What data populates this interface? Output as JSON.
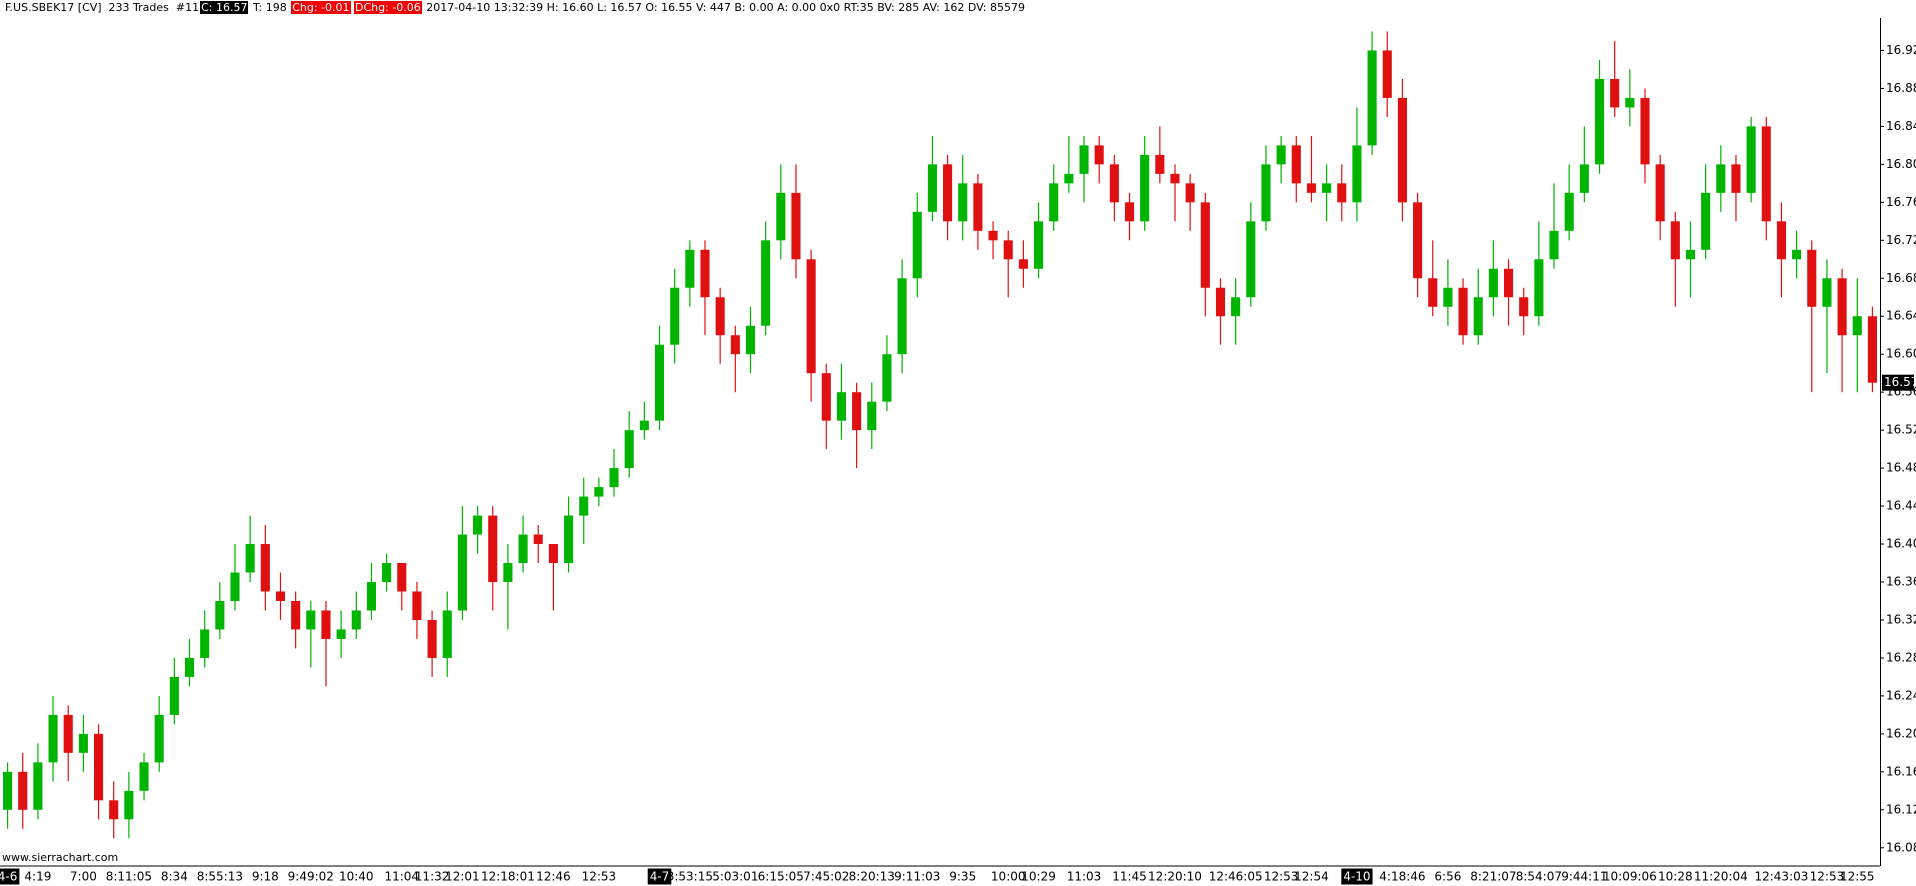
{
  "header": {
    "symbol": "F.US.SBEK17 [CV]  233 Trades  #11",
    "close": "C: 16.57",
    "ticks": "T: 198",
    "chg": "Chg: -0.01",
    "dchg": "DChg: -0.06",
    "info": "2017-04-10 13:32:39 H: 16.60 L: 16.57 O: 16.55 V: 447 B: 0.00 A: 0.00 0x0 RT:35 BV: 285 AV: 162 DV: 85579"
  },
  "watermark": "www.sierrachart.com",
  "chart_data": {
    "type": "candlestick",
    "up_color": "#00b400",
    "down_color": "#e01010",
    "ylim": [
      16.065,
      16.95
    ],
    "yticks": [
      16.08,
      16.12,
      16.16,
      {
        "value": 16.2,
        "label": "16.20"
      },
      16.24,
      16.28,
      16.32,
      16.36,
      {
        "value": 16.4,
        "label": "16.40"
      },
      16.44,
      16.48,
      16.52,
      16.56,
      {
        "value": 16.6,
        "label": "16.60"
      },
      16.64,
      16.68,
      16.72,
      16.76,
      {
        "value": 16.8,
        "label": "16.80"
      },
      16.84,
      16.88,
      16.92
    ],
    "last_price": 16.57,
    "categories": [
      "4-6",
      null,
      "4:19",
      null,
      null,
      "7:00",
      null,
      null,
      "8:11:05",
      null,
      null,
      "8:34",
      null,
      null,
      "8:55:13",
      null,
      null,
      "9:18",
      null,
      null,
      "9:49:02",
      null,
      null,
      "10:40",
      null,
      null,
      "11:04",
      null,
      "11:32",
      null,
      "12:01",
      null,
      null,
      "12:18:01",
      null,
      null,
      "12:46",
      null,
      null,
      "12:53",
      null,
      null,
      null,
      "4-7",
      null,
      "3:53:15",
      null,
      null,
      "5:03:01",
      null,
      null,
      "6:15:05",
      null,
      null,
      "7:45:02",
      null,
      null,
      "8:20:13",
      null,
      null,
      "9:11:03",
      null,
      null,
      "9:35",
      null,
      null,
      "10:00",
      null,
      "10:29",
      null,
      null,
      "11:03",
      null,
      null,
      "11:45",
      null,
      null,
      "12:20:10",
      null,
      null,
      null,
      "12:46:05",
      null,
      null,
      "12:53",
      null,
      "12:54",
      null,
      null,
      "4-10",
      null,
      null,
      "4:18:46",
      null,
      null,
      "6:56",
      null,
      null,
      "8:21:07",
      null,
      null,
      "8:54:07",
      null,
      null,
      "9:44:11",
      null,
      null,
      "10:09:06",
      null,
      null,
      "10:28",
      null,
      null,
      "11:20:04",
      null,
      null,
      null,
      "12:43:03",
      null,
      null,
      "12:53",
      null,
      "12:55",
      null
    ],
    "ohlc": [
      [
        16.12,
        16.17,
        16.1,
        16.16
      ],
      [
        16.16,
        16.18,
        16.1,
        16.12
      ],
      [
        16.12,
        16.19,
        16.11,
        16.17
      ],
      [
        16.17,
        16.24,
        16.15,
        16.22
      ],
      [
        16.22,
        16.23,
        16.15,
        16.18
      ],
      [
        16.18,
        16.22,
        16.16,
        16.2
      ],
      [
        16.2,
        16.21,
        16.11,
        16.13
      ],
      [
        16.13,
        16.15,
        16.09,
        16.11
      ],
      [
        16.11,
        16.16,
        16.09,
        16.14
      ],
      [
        16.14,
        16.18,
        16.13,
        16.17
      ],
      [
        16.17,
        16.24,
        16.16,
        16.22
      ],
      [
        16.22,
        16.28,
        16.21,
        16.26
      ],
      [
        16.26,
        16.3,
        16.25,
        16.28
      ],
      [
        16.28,
        16.33,
        16.27,
        16.31
      ],
      [
        16.31,
        16.36,
        16.3,
        16.34
      ],
      [
        16.34,
        16.4,
        16.33,
        16.37
      ],
      [
        16.37,
        16.43,
        16.36,
        16.4
      ],
      [
        16.4,
        16.42,
        16.33,
        16.35
      ],
      [
        16.35,
        16.37,
        16.32,
        16.34
      ],
      [
        16.34,
        16.35,
        16.29,
        16.31
      ],
      [
        16.31,
        16.34,
        16.27,
        16.33
      ],
      [
        16.33,
        16.34,
        16.25,
        16.3
      ],
      [
        16.3,
        16.33,
        16.28,
        16.31
      ],
      [
        16.31,
        16.35,
        16.3,
        16.33
      ],
      [
        16.33,
        16.38,
        16.32,
        16.36
      ],
      [
        16.36,
        16.39,
        16.35,
        16.38
      ],
      [
        16.38,
        16.38,
        16.33,
        16.35
      ],
      [
        16.35,
        16.36,
        16.3,
        16.32
      ],
      [
        16.32,
        16.33,
        16.26,
        16.28
      ],
      [
        16.28,
        16.35,
        16.26,
        16.33
      ],
      [
        16.33,
        16.44,
        16.32,
        16.41
      ],
      [
        16.41,
        16.44,
        16.39,
        16.43
      ],
      [
        16.43,
        16.44,
        16.33,
        16.36
      ],
      [
        16.36,
        16.4,
        16.31,
        16.38
      ],
      [
        16.38,
        16.43,
        16.37,
        16.41
      ],
      [
        16.41,
        16.42,
        16.38,
        16.4
      ],
      [
        16.4,
        16.4,
        16.33,
        16.38
      ],
      [
        16.38,
        16.45,
        16.37,
        16.43
      ],
      [
        16.43,
        16.47,
        16.4,
        16.45
      ],
      [
        16.45,
        16.47,
        16.44,
        16.46
      ],
      [
        16.46,
        16.5,
        16.45,
        16.48
      ],
      [
        16.48,
        16.54,
        16.47,
        16.52
      ],
      [
        16.52,
        16.55,
        16.51,
        16.53
      ],
      [
        16.53,
        16.63,
        16.52,
        16.61
      ],
      [
        16.61,
        16.69,
        16.59,
        16.67
      ],
      [
        16.67,
        16.72,
        16.65,
        16.71
      ],
      [
        16.71,
        16.72,
        16.62,
        16.66
      ],
      [
        16.66,
        16.67,
        16.59,
        16.62
      ],
      [
        16.62,
        16.63,
        16.56,
        16.6
      ],
      [
        16.6,
        16.65,
        16.58,
        16.63
      ],
      [
        16.63,
        16.74,
        16.62,
        16.72
      ],
      [
        16.72,
        16.8,
        16.7,
        16.77
      ],
      [
        16.77,
        16.8,
        16.68,
        16.7
      ],
      [
        16.7,
        16.71,
        16.55,
        16.58
      ],
      [
        16.58,
        16.59,
        16.5,
        16.53
      ],
      [
        16.53,
        16.59,
        16.51,
        16.56
      ],
      [
        16.56,
        16.57,
        16.48,
        16.52
      ],
      [
        16.52,
        16.57,
        16.5,
        16.55
      ],
      [
        16.55,
        16.62,
        16.54,
        16.6
      ],
      [
        16.6,
        16.7,
        16.58,
        16.68
      ],
      [
        16.68,
        16.77,
        16.66,
        16.75
      ],
      [
        16.75,
        16.83,
        16.74,
        16.8
      ],
      [
        16.8,
        16.81,
        16.72,
        16.74
      ],
      [
        16.74,
        16.81,
        16.72,
        16.78
      ],
      [
        16.78,
        16.79,
        16.71,
        16.73
      ],
      [
        16.73,
        16.74,
        16.7,
        16.72
      ],
      [
        16.72,
        16.73,
        16.66,
        16.7
      ],
      [
        16.7,
        16.72,
        16.67,
        16.69
      ],
      [
        16.69,
        16.76,
        16.68,
        16.74
      ],
      [
        16.74,
        16.8,
        16.73,
        16.78
      ],
      [
        16.78,
        16.83,
        16.77,
        16.79
      ],
      [
        16.79,
        16.83,
        16.76,
        16.82
      ],
      [
        16.82,
        16.83,
        16.78,
        16.8
      ],
      [
        16.8,
        16.81,
        16.74,
        16.76
      ],
      [
        16.76,
        16.77,
        16.72,
        16.74
      ],
      [
        16.74,
        16.83,
        16.73,
        16.81
      ],
      [
        16.81,
        16.84,
        16.78,
        16.79
      ],
      [
        16.79,
        16.8,
        16.74,
        16.78
      ],
      [
        16.78,
        16.79,
        16.73,
        16.76
      ],
      [
        16.76,
        16.77,
        16.64,
        16.67
      ],
      [
        16.67,
        16.68,
        16.61,
        16.64
      ],
      [
        16.64,
        16.68,
        16.61,
        16.66
      ],
      [
        16.66,
        16.76,
        16.65,
        16.74
      ],
      [
        16.74,
        16.82,
        16.73,
        16.8
      ],
      [
        16.8,
        16.83,
        16.78,
        16.82
      ],
      [
        16.82,
        16.83,
        16.76,
        16.78
      ],
      [
        16.78,
        16.83,
        16.76,
        16.77
      ],
      [
        16.77,
        16.8,
        16.74,
        16.78
      ],
      [
        16.78,
        16.8,
        16.74,
        16.76
      ],
      [
        16.76,
        16.86,
        16.74,
        16.82
      ],
      [
        16.82,
        16.94,
        16.81,
        16.92
      ],
      [
        16.92,
        16.94,
        16.85,
        16.87
      ],
      [
        16.87,
        16.89,
        16.74,
        16.76
      ],
      [
        16.76,
        16.77,
        16.66,
        16.68
      ],
      [
        16.68,
        16.72,
        16.64,
        16.65
      ],
      [
        16.65,
        16.7,
        16.63,
        16.67
      ],
      [
        16.67,
        16.68,
        16.61,
        16.62
      ],
      [
        16.62,
        16.69,
        16.61,
        16.66
      ],
      [
        16.66,
        16.72,
        16.64,
        16.69
      ],
      [
        16.69,
        16.7,
        16.63,
        16.66
      ],
      [
        16.66,
        16.67,
        16.62,
        16.64
      ],
      [
        16.64,
        16.74,
        16.63,
        16.7
      ],
      [
        16.7,
        16.78,
        16.69,
        16.73
      ],
      [
        16.73,
        16.8,
        16.72,
        16.77
      ],
      [
        16.77,
        16.84,
        16.76,
        16.8
      ],
      [
        16.8,
        16.91,
        16.79,
        16.89
      ],
      [
        16.89,
        16.93,
        16.85,
        16.86
      ],
      [
        16.86,
        16.9,
        16.84,
        16.87
      ],
      [
        16.87,
        16.88,
        16.78,
        16.8
      ],
      [
        16.8,
        16.81,
        16.72,
        16.74
      ],
      [
        16.74,
        16.75,
        16.65,
        16.7
      ],
      [
        16.7,
        16.74,
        16.66,
        16.71
      ],
      [
        16.71,
        16.8,
        16.7,
        16.77
      ],
      [
        16.77,
        16.82,
        16.75,
        16.8
      ],
      [
        16.8,
        16.81,
        16.74,
        16.77
      ],
      [
        16.77,
        16.85,
        16.76,
        16.84
      ],
      [
        16.84,
        16.85,
        16.72,
        16.74
      ],
      [
        16.74,
        16.76,
        16.66,
        16.7
      ],
      [
        16.7,
        16.73,
        16.68,
        16.71
      ],
      [
        16.71,
        16.72,
        16.56,
        16.65
      ],
      [
        16.65,
        16.7,
        16.58,
        16.68
      ],
      [
        16.68,
        16.69,
        16.56,
        16.62
      ],
      [
        16.62,
        16.68,
        16.56,
        16.64
      ],
      [
        16.64,
        16.65,
        16.56,
        16.57
      ]
    ]
  }
}
